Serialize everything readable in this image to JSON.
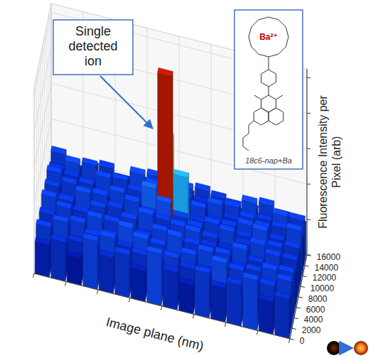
{
  "chart_data": {
    "type": "bar3d",
    "annotation": "Single detected ion",
    "x_label": "Image plane (nm)",
    "z_label": "Fluorescence Intensity per Pixel (arb)",
    "inset": {
      "ion": "Ba²⁺",
      "caption": "18c6-nap+Ba"
    },
    "x": [
      500,
      1500,
      2500,
      3500,
      4500,
      5500,
      6500,
      7500,
      8500,
      9500,
      10500,
      11500,
      12500,
      13500,
      14500,
      15500
    ],
    "y": [
      500,
      1500,
      2500,
      3500,
      4500,
      5500,
      6500,
      7500,
      8500,
      9500,
      10500,
      11500,
      12500,
      13500,
      14500,
      15500
    ],
    "values": [
      [
        18,
        22,
        15,
        27,
        20,
        24,
        17,
        29,
        21,
        16,
        25,
        19,
        23,
        28,
        18,
        22
      ],
      [
        25,
        17,
        21,
        19,
        28,
        16,
        23,
        20,
        26,
        22,
        18,
        30,
        17,
        21,
        24,
        19
      ],
      [
        20,
        27,
        18,
        24,
        16,
        22,
        29,
        18,
        23,
        27,
        20,
        17,
        25,
        19,
        22,
        26
      ],
      [
        16,
        21,
        26,
        18,
        23,
        30,
        19,
        25,
        17,
        21,
        28,
        22,
        18,
        24,
        27,
        20
      ],
      [
        23,
        19,
        22,
        28,
        17,
        20,
        24,
        16,
        29,
        19,
        23,
        26,
        21,
        17,
        20,
        25
      ],
      [
        19,
        26,
        17,
        21,
        25,
        18,
        22,
        27,
        20,
        24,
        16,
        21,
        28,
        23,
        19,
        22
      ],
      [
        27,
        18,
        23,
        16,
        22,
        26,
        19,
        23,
        18,
        28,
        22,
        19,
        24,
        20,
        26,
        17
      ],
      [
        21,
        24,
        19,
        25,
        18,
        23,
        28,
        21,
        26,
        17,
        24,
        20,
        16,
        27,
        21,
        23
      ],
      [
        17,
        22,
        28,
        20,
        24,
        19,
        16,
        24,
        22,
        25,
        19,
        27,
        22,
        18,
        25,
        20
      ],
      [
        24,
        19,
        21,
        26,
        20,
        27,
        23,
        31,
        25,
        20,
        26,
        18,
        23,
        29,
        17,
        24
      ],
      [
        20,
        25,
        18,
        22,
        27,
        21,
        34,
        100,
        45,
        22,
        19,
        24,
        27,
        20,
        23,
        18
      ],
      [
        26,
        17,
        24,
        19,
        23,
        18,
        25,
        62,
        30,
        27,
        21,
        16,
        20,
        25,
        19,
        28
      ],
      [
        18,
        23,
        20,
        27,
        16,
        24,
        21,
        26,
        19,
        23,
        28,
        22,
        25,
        17,
        24,
        21
      ],
      [
        22,
        28,
        17,
        21,
        25,
        19,
        27,
        20,
        24,
        18,
        22,
        26,
        19,
        23,
        28,
        16
      ],
      [
        19,
        21,
        26,
        18,
        22,
        28,
        17,
        23,
        27,
        21,
        19,
        24,
        28,
        20,
        17,
        25
      ],
      [
        25,
        18,
        22,
        24,
        19,
        21,
        26,
        18,
        20,
        25,
        23,
        17,
        21,
        26,
        22,
        19
      ]
    ],
    "xlim": [
      0,
      16000
    ],
    "ylim": [
      0,
      16000
    ],
    "zlim": [
      0,
      105
    ],
    "xticks": [
      0,
      2000,
      4000,
      6000,
      8000,
      10000,
      12000,
      14000,
      16000
    ],
    "yticks": [
      0,
      2000,
      4000,
      6000,
      8000,
      10000,
      12000,
      14000,
      16000
    ],
    "zticks": [
      0,
      20,
      40,
      60,
      80,
      100
    ],
    "tick_labels": "y",
    "grid": true
  }
}
